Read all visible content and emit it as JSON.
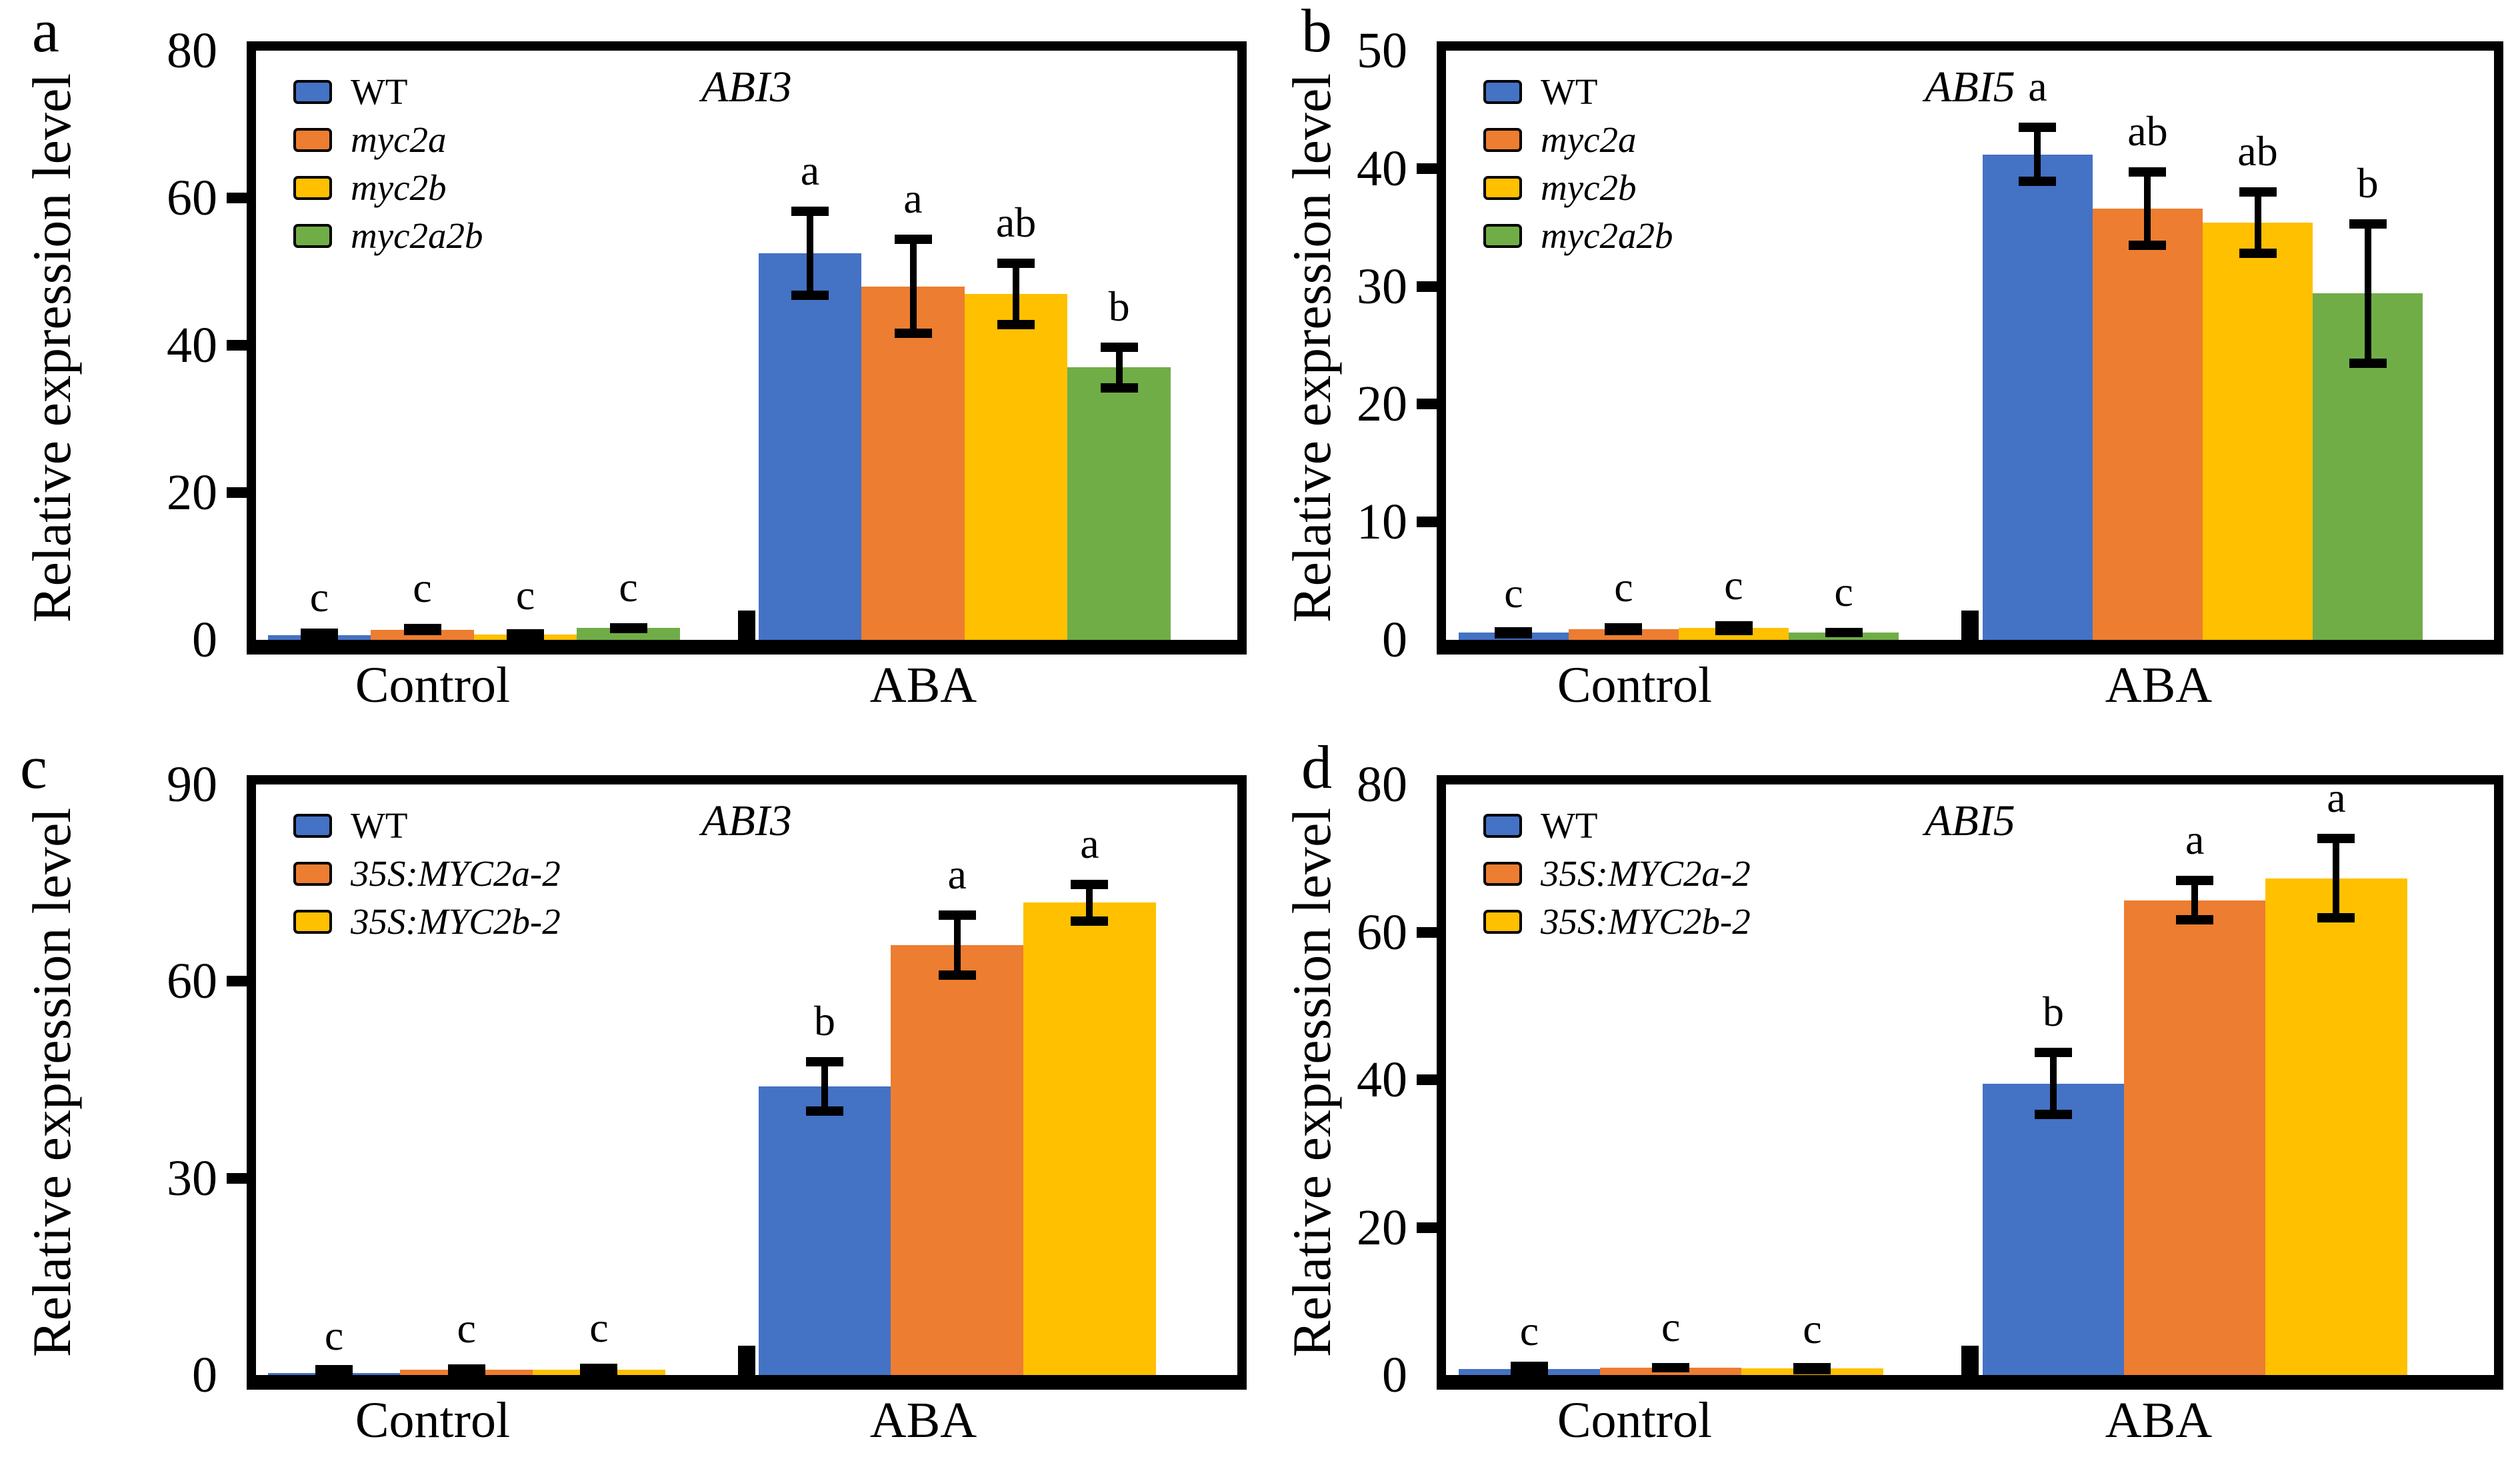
{
  "figure": {
    "y_axis_title": "Relative expression level",
    "axis_color": "#000000",
    "background": "#ffffff",
    "x_categories": [
      "Control",
      "ABA"
    ]
  },
  "chart_data": [
    {
      "type": "bar",
      "panel_label": "a",
      "title": "ABI3",
      "ylabel": "Relative expression level",
      "categories": [
        "Control",
        "ABA"
      ],
      "ylim": [
        0,
        80
      ],
      "ytick_step": 20,
      "legend_position": "top-left-inside",
      "series": [
        {
          "name": "WT",
          "color": "#4472C4",
          "values": [
            0.6,
            52.5
          ],
          "errors": [
            0.3,
            6.3
          ],
          "sig_labels": [
            "c",
            "a"
          ]
        },
        {
          "name": "myc2a",
          "color": "#ED7D31",
          "values": [
            1.4,
            48.0
          ],
          "errors": [
            0.8,
            7.0
          ],
          "sig_labels": [
            "c",
            "a"
          ]
        },
        {
          "name": "myc2b",
          "color": "#FFC000",
          "values": [
            0.7,
            47.0
          ],
          "errors": [
            0.5,
            4.8
          ],
          "sig_labels": [
            "c",
            "ab"
          ]
        },
        {
          "name": "myc2a2b",
          "color": "#70AD47",
          "values": [
            1.6,
            37.0
          ],
          "errors": [
            0.7,
            3.4
          ],
          "sig_labels": [
            "c",
            "b"
          ]
        }
      ]
    },
    {
      "type": "bar",
      "panel_label": "b",
      "title": "ABI5",
      "ylabel": "Relative expression level",
      "categories": [
        "Control",
        "ABA"
      ],
      "ylim": [
        0,
        50
      ],
      "ytick_step": 10,
      "legend_position": "top-left-inside",
      "series": [
        {
          "name": "WT",
          "color": "#4472C4",
          "values": [
            0.6,
            41.2
          ],
          "errors": [
            0.3,
            2.7
          ],
          "sig_labels": [
            "c",
            "a"
          ]
        },
        {
          "name": "myc2a",
          "color": "#ED7D31",
          "values": [
            0.9,
            36.6
          ],
          "errors": [
            0.5,
            3.5
          ],
          "sig_labels": [
            "c",
            "ab"
          ]
        },
        {
          "name": "myc2b",
          "color": "#FFC000",
          "values": [
            1.0,
            35.4
          ],
          "errors": [
            0.6,
            3.0
          ],
          "sig_labels": [
            "c",
            "ab"
          ]
        },
        {
          "name": "myc2a2b",
          "color": "#70AD47",
          "values": [
            0.6,
            29.4
          ],
          "errors": [
            0.4,
            6.3
          ],
          "sig_labels": [
            "c",
            "b"
          ]
        }
      ]
    },
    {
      "type": "bar",
      "panel_label": "c",
      "title": "ABI3",
      "ylabel": "Relative expression level",
      "categories": [
        "Control",
        "ABA"
      ],
      "ylim": [
        0,
        90
      ],
      "ytick_step": 30,
      "legend_position": "top-left-inside",
      "series": [
        {
          "name": "WT",
          "color": "#4472C4",
          "values": [
            0.3,
            44.0
          ],
          "errors": [
            0.2,
            4.5
          ],
          "sig_labels": [
            "c",
            "b"
          ]
        },
        {
          "name": "35S:MYC2a-2",
          "color": "#ED7D31",
          "values": [
            0.8,
            65.5
          ],
          "errors": [
            0.8,
            5.3
          ],
          "sig_labels": [
            "c",
            "a"
          ]
        },
        {
          "name": "35S:MYC2b-2",
          "color": "#FFC000",
          "values": [
            0.8,
            72.0
          ],
          "errors": [
            0.9,
            3.5
          ],
          "sig_labels": [
            "c",
            "a"
          ]
        }
      ]
    },
    {
      "type": "bar",
      "panel_label": "d",
      "title": "ABI5",
      "ylabel": "Relative expression level",
      "categories": [
        "Control",
        "ABA"
      ],
      "ylim": [
        0,
        80
      ],
      "ytick_step": 20,
      "legend_position": "top-left-inside",
      "series": [
        {
          "name": "WT",
          "color": "#4472C4",
          "values": [
            0.8,
            39.5
          ],
          "errors": [
            0.3,
            4.8
          ],
          "sig_labels": [
            "c",
            "b"
          ]
        },
        {
          "name": "35S:MYC2a-2",
          "color": "#ED7D31",
          "values": [
            1.0,
            64.3
          ],
          "errors": [
            0.6,
            3.3
          ],
          "sig_labels": [
            "c",
            "a"
          ]
        },
        {
          "name": "35S:MYC2b-2",
          "color": "#FFC000",
          "values": [
            0.9,
            67.3
          ],
          "errors": [
            0.5,
            6.0
          ],
          "sig_labels": [
            "c",
            "a"
          ]
        }
      ]
    }
  ]
}
